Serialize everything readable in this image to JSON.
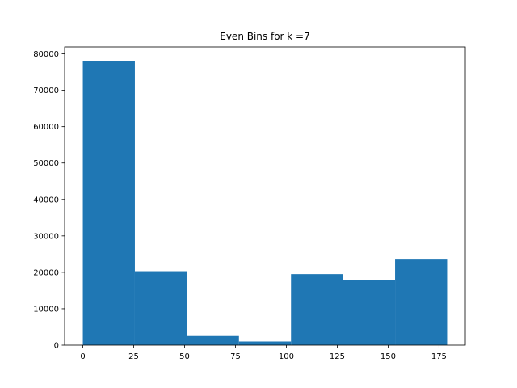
{
  "chart_data": {
    "type": "bar",
    "title": "Even Bins for k =7",
    "xlabel": "",
    "ylabel": "",
    "bins": [
      {
        "start": 0,
        "end": 25.57,
        "count": 78000
      },
      {
        "start": 25.57,
        "end": 51.14,
        "count": 20300
      },
      {
        "start": 51.14,
        "end": 76.71,
        "count": 2500
      },
      {
        "start": 76.71,
        "end": 102.29,
        "count": 1000
      },
      {
        "start": 102.29,
        "end": 127.86,
        "count": 19500
      },
      {
        "start": 127.86,
        "end": 153.43,
        "count": 17800
      },
      {
        "start": 153.43,
        "end": 179,
        "count": 23500
      }
    ],
    "xlim": [
      -8.95,
      187.95
    ],
    "ylim": [
      0,
      81900
    ],
    "xticks": [
      0,
      25,
      50,
      75,
      100,
      125,
      150,
      175
    ],
    "xtick_labels": [
      "0",
      "25",
      "50",
      "75",
      "100",
      "125",
      "150",
      "175"
    ],
    "yticks": [
      0,
      10000,
      20000,
      30000,
      40000,
      50000,
      60000,
      70000,
      80000
    ],
    "ytick_labels": [
      "0",
      "10000",
      "20000",
      "30000",
      "40000",
      "50000",
      "60000",
      "70000",
      "80000"
    ],
    "bar_color": "#1f77b4",
    "grid": false,
    "legend": "none"
  }
}
